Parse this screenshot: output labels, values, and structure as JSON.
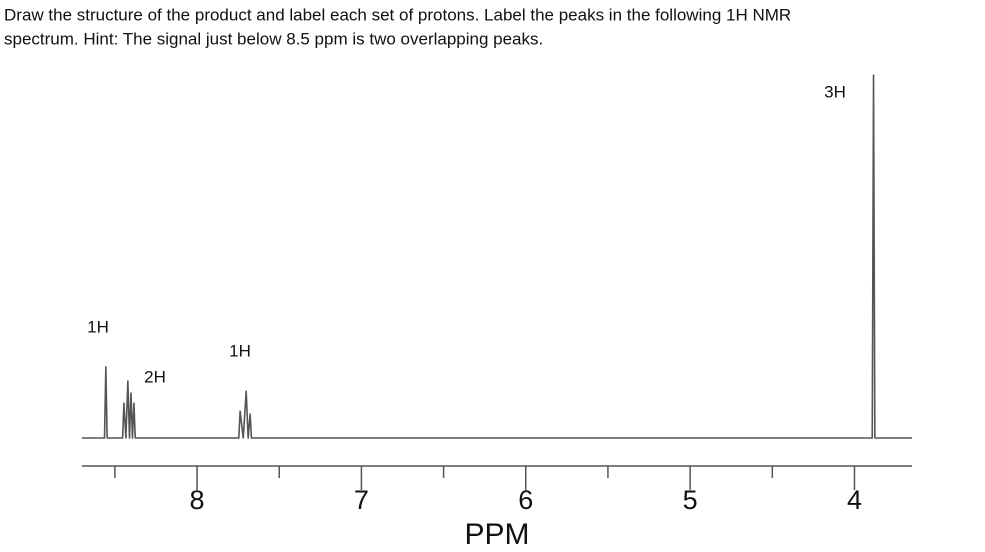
{
  "chart_data": {
    "type": "line",
    "title": "Draw the structure of the product and label each set of protons. Label the peaks in the following 1H NMR",
    "subtitle": "spectrum. Hint: The signal just below 8.5 ppm is two overlapping peaks.",
    "xlabel": "PPM",
    "series": [
      {
        "color": "#555555",
        "x": [
          8.7,
          8.563,
          8.555,
          8.547,
          8.453,
          8.445,
          8.433,
          8.421,
          8.411,
          8.402,
          8.393,
          8.384,
          8.376,
          7.746,
          7.738,
          7.719,
          7.701,
          7.689,
          7.677,
          7.669,
          3.892,
          3.884,
          3.876,
          3.65
        ],
        "values": [
          0,
          0,
          19.6,
          0,
          0,
          9.6,
          0,
          15.7,
          0,
          12.4,
          0,
          9.6,
          0,
          0,
          7.4,
          0,
          12.9,
          0,
          6.6,
          0,
          0,
          100,
          0,
          0
        ]
      }
    ],
    "xlim": [
      8.7,
      3.65
    ],
    "xticks": [
      8,
      7,
      6,
      5,
      4
    ],
    "xminor_ticks": [
      8.5,
      7.5,
      6.5,
      5.5,
      4.5
    ],
    "ylim": [
      0,
      100
    ],
    "annotations": [
      "1H",
      "2H",
      "1H",
      "3H"
    ]
  }
}
